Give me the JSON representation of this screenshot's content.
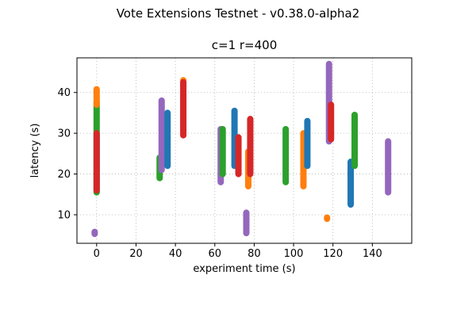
{
  "figure": {
    "suptitle": "Vote Extensions Testnet - v0.38.0-alpha2"
  },
  "chart_data": {
    "type": "scatter",
    "title": "c=1 r=400",
    "xlabel": "experiment time (s)",
    "ylabel": "latency (s)",
    "xlim": [
      -10,
      160
    ],
    "ylim": [
      3,
      48.5
    ],
    "xticks": [
      0,
      20,
      40,
      60,
      80,
      100,
      120,
      140
    ],
    "yticks": [
      10,
      20,
      30,
      40
    ],
    "grid": true,
    "legend": "none",
    "colors": {
      "blue": "#1f77b4",
      "orange": "#ff7f0e",
      "green": "#2ca02c",
      "red": "#d62728",
      "purple": "#9467bd"
    },
    "segments": [
      {
        "x": -1,
        "y0": 5.3,
        "y1": 5.8,
        "c": "purple"
      },
      {
        "x": 0,
        "y0": 15.5,
        "y1": 37.5,
        "c": "green"
      },
      {
        "x": 0,
        "y0": 37,
        "y1": 40.8,
        "c": "orange"
      },
      {
        "x": 0,
        "y0": 16,
        "y1": 30,
        "c": "red"
      },
      {
        "x": 32,
        "y0": 19,
        "y1": 24,
        "c": "green"
      },
      {
        "x": 33,
        "y0": 21,
        "y1": 38,
        "c": "purple"
      },
      {
        "x": 36,
        "y0": 22,
        "y1": 35,
        "c": "blue"
      },
      {
        "x": 44,
        "y0": 41.5,
        "y1": 43,
        "c": "orange"
      },
      {
        "x": 44,
        "y0": 29.5,
        "y1": 42.5,
        "c": "red"
      },
      {
        "x": 63,
        "y0": 18,
        "y1": 31,
        "c": "purple"
      },
      {
        "x": 64,
        "y0": 20,
        "y1": 31,
        "c": "green"
      },
      {
        "x": 70,
        "y0": 22,
        "y1": 35.5,
        "c": "blue"
      },
      {
        "x": 72,
        "y0": 20,
        "y1": 29,
        "c": "red"
      },
      {
        "x": 76,
        "y0": 5.5,
        "y1": 10.5,
        "c": "purple"
      },
      {
        "x": 77,
        "y0": 17,
        "y1": 25.5,
        "c": "orange"
      },
      {
        "x": 78,
        "y0": 20,
        "y1": 33.5,
        "c": "red"
      },
      {
        "x": 96,
        "y0": 18,
        "y1": 31,
        "c": "green"
      },
      {
        "x": 105,
        "y0": 17,
        "y1": 30,
        "c": "orange"
      },
      {
        "x": 107,
        "y0": 22,
        "y1": 33,
        "c": "blue"
      },
      {
        "x": 117,
        "y0": 9,
        "y1": 9.3,
        "c": "orange"
      },
      {
        "x": 118,
        "y0": 28,
        "y1": 47,
        "c": "purple"
      },
      {
        "x": 119,
        "y0": 28.5,
        "y1": 37,
        "c": "red"
      },
      {
        "x": 129,
        "y0": 12.5,
        "y1": 23,
        "c": "blue"
      },
      {
        "x": 131,
        "y0": 22,
        "y1": 34.5,
        "c": "green"
      },
      {
        "x": 148,
        "y0": 15.5,
        "y1": 28,
        "c": "purple"
      }
    ]
  }
}
